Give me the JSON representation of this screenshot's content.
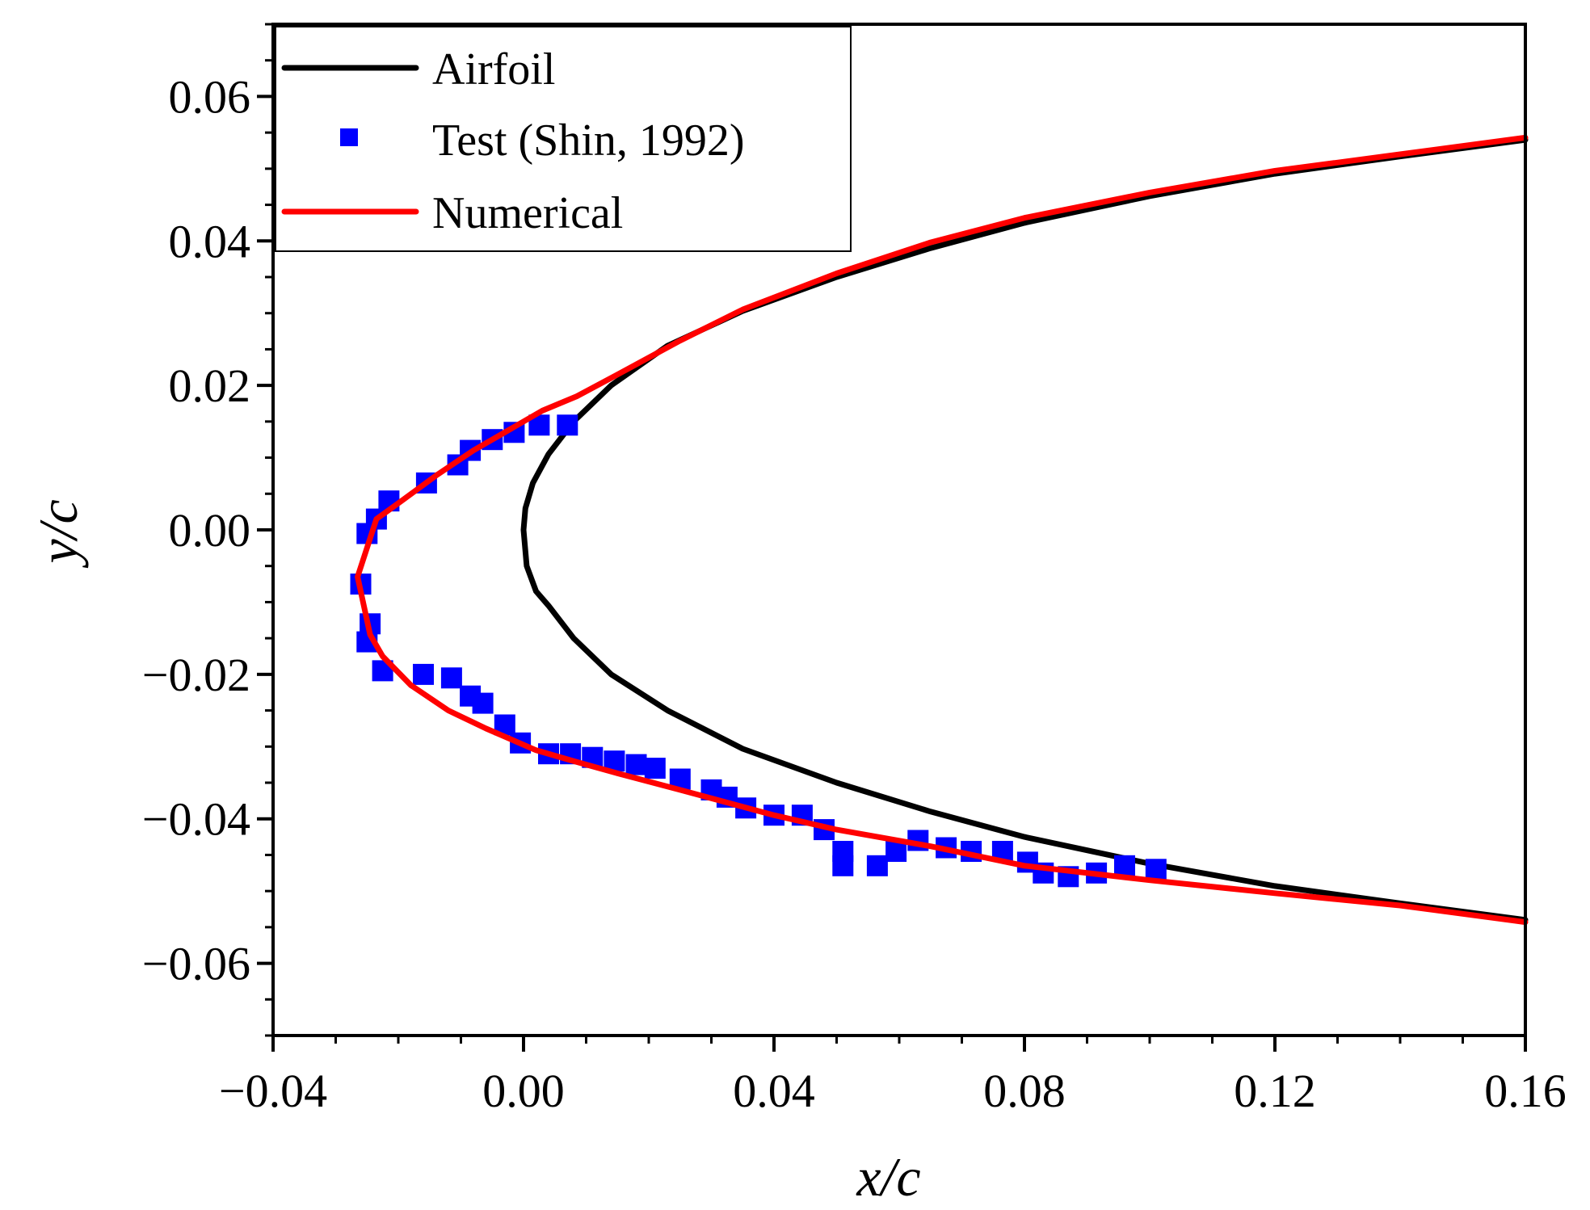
{
  "chart_data": {
    "type": "line",
    "title": "",
    "xlabel": "x/c",
    "ylabel": "y/c",
    "xlim": [
      -0.04,
      0.16
    ],
    "ylim": [
      -0.07,
      0.07
    ],
    "xticks": [
      -0.04,
      0.0,
      0.04,
      0.08,
      0.12,
      0.16
    ],
    "xtick_labels": [
      "−0.04",
      "0.00",
      "0.04",
      "0.08",
      "0.12",
      "0.16"
    ],
    "yticks": [
      -0.06,
      -0.04,
      -0.02,
      0.0,
      0.02,
      0.04,
      0.06
    ],
    "ytick_labels": [
      "−0.06",
      "−0.04",
      "−0.02",
      "0.00",
      "0.02",
      "0.04",
      "0.06"
    ],
    "grid": false,
    "legend_position": "top-left",
    "series": [
      {
        "name": "Airfoil",
        "kind": "line",
        "color": "#000000",
        "x": [
          0.16,
          0.14,
          0.12,
          0.1,
          0.08,
          0.065,
          0.05,
          0.035,
          0.023,
          0.014,
          0.008,
          0.004,
          0.0015,
          0.0003,
          0.0,
          0.0005,
          0.002,
          0.004,
          0.008,
          0.014,
          0.023,
          0.035,
          0.05,
          0.065,
          0.08,
          0.1,
          0.12,
          0.14,
          0.16
        ],
        "y": [
          0.054,
          0.0517,
          0.0493,
          0.0462,
          0.0425,
          0.039,
          0.035,
          0.0303,
          0.0255,
          0.02,
          0.015,
          0.0105,
          0.0065,
          0.003,
          0.0,
          -0.005,
          -0.0085,
          -0.0105,
          -0.015,
          -0.02,
          -0.025,
          -0.0303,
          -0.035,
          -0.039,
          -0.0425,
          -0.0462,
          -0.0493,
          -0.0517,
          -0.054
        ]
      },
      {
        "name": "Test (Shin, 1992)",
        "kind": "scatter",
        "marker": "square",
        "color": "#0000ff",
        "x": [
          0.007,
          0.0025,
          -0.0015,
          -0.005,
          -0.0085,
          -0.0105,
          -0.0155,
          -0.0215,
          -0.0235,
          -0.025,
          -0.026,
          -0.0245,
          -0.025,
          -0.0225,
          -0.016,
          -0.0115,
          -0.0085,
          -0.0065,
          -0.003,
          -0.0005,
          0.004,
          0.0075,
          0.011,
          0.0145,
          0.018,
          0.021,
          0.025,
          0.03,
          0.0325,
          0.0355,
          0.04,
          0.0445,
          0.048,
          0.051,
          0.051,
          0.0565,
          0.0595,
          0.063,
          0.0675,
          0.0715,
          0.0765,
          0.0805,
          0.083,
          0.087,
          0.0915,
          0.096,
          0.101
        ],
        "y": [
          0.0145,
          0.0145,
          0.0135,
          0.0125,
          0.011,
          0.009,
          0.0065,
          0.004,
          0.0015,
          -0.0005,
          -0.0075,
          -0.013,
          -0.0155,
          -0.0195,
          -0.02,
          -0.0205,
          -0.023,
          -0.024,
          -0.027,
          -0.0295,
          -0.031,
          -0.031,
          -0.0315,
          -0.032,
          -0.0325,
          -0.033,
          -0.0345,
          -0.036,
          -0.037,
          -0.0385,
          -0.0395,
          -0.0395,
          -0.0415,
          -0.0445,
          -0.0465,
          -0.0465,
          -0.0445,
          -0.043,
          -0.044,
          -0.0445,
          -0.0445,
          -0.046,
          -0.0475,
          -0.048,
          -0.0475,
          -0.0465,
          -0.047
        ]
      },
      {
        "name": "Numerical",
        "kind": "line",
        "color": "#ff0000",
        "x": [
          0.16,
          0.14,
          0.12,
          0.1,
          0.08,
          0.065,
          0.05,
          0.035,
          0.025,
          0.015,
          0.0085,
          0.003,
          -0.002,
          -0.008,
          -0.014,
          -0.0195,
          -0.0235,
          -0.0265,
          -0.0245,
          -0.0225,
          -0.018,
          -0.012,
          -0.006,
          -0.002,
          0.002,
          0.008,
          0.015,
          0.025,
          0.04,
          0.05,
          0.065,
          0.08,
          0.1,
          0.12,
          0.14,
          0.16
        ],
        "y": [
          0.0543,
          0.052,
          0.0497,
          0.0467,
          0.0432,
          0.0398,
          0.0355,
          0.0305,
          0.0262,
          0.0215,
          0.0185,
          0.0165,
          0.014,
          0.011,
          0.0075,
          0.004,
          0.0015,
          -0.0065,
          -0.0145,
          -0.0175,
          -0.0215,
          -0.025,
          -0.0275,
          -0.029,
          -0.0305,
          -0.032,
          -0.0337,
          -0.036,
          -0.0395,
          -0.0415,
          -0.0438,
          -0.0465,
          -0.0485,
          -0.0503,
          -0.052,
          -0.0543
        ]
      }
    ]
  }
}
